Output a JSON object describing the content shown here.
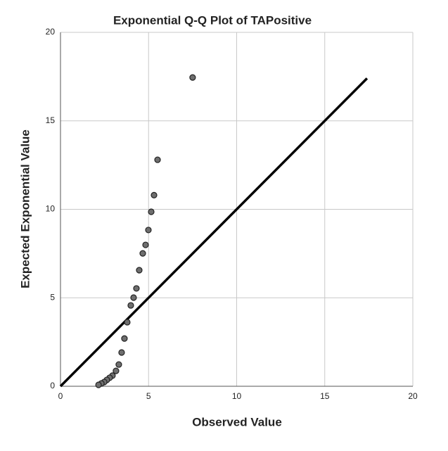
{
  "chart_data": {
    "type": "scatter",
    "title": "Exponential Q-Q Plot of TAPositive",
    "x_label": "Observed Value",
    "y_label": "Expected Exponential Value",
    "x": [
      7.5,
      5.51,
      5.31,
      5.15,
      4.99,
      4.83,
      4.67,
      4.47,
      4.31,
      4.15,
      3.99,
      3.79,
      3.63,
      3.47,
      3.31,
      3.15,
      2.95,
      2.79,
      2.63,
      2.48,
      2.32,
      2.16
    ],
    "values": [
      17.45,
      12.8,
      10.8,
      9.86,
      8.83,
      7.99,
      7.51,
      6.56,
      5.53,
      5.01,
      4.57,
      3.62,
      2.7,
      1.91,
      1.23,
      0.87,
      0.6,
      0.48,
      0.36,
      0.24,
      0.16,
      0.08
    ],
    "color": "#6e6e6e",
    "reference_line": {
      "x": [
        0,
        17.4
      ],
      "y": [
        0,
        17.4
      ],
      "color": "#000000"
    },
    "xlim": [
      0,
      20
    ],
    "ylim": [
      0,
      20
    ],
    "xticks": [
      0,
      5,
      10,
      15,
      20
    ],
    "yticks": [
      0,
      5,
      10,
      15,
      20
    ],
    "grid": true
  }
}
